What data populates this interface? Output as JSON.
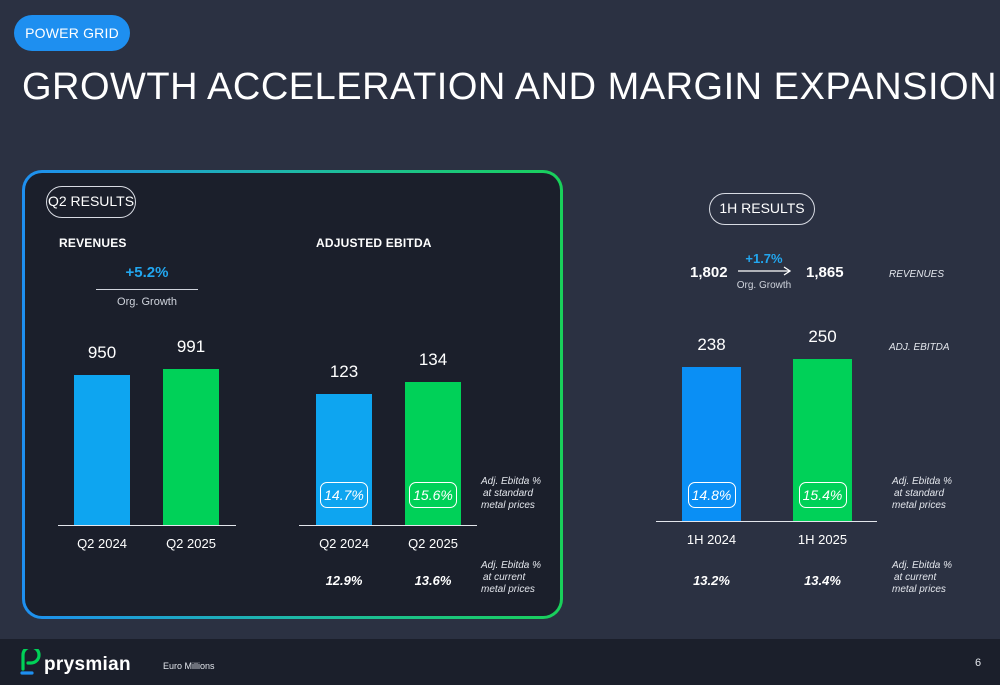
{
  "header": {
    "tag": "POWER GRID",
    "title": "GROWTH ACCELERATION AND MARGIN EXPANSION"
  },
  "q2": {
    "pill": "Q2 RESULTS",
    "revenues": {
      "heading": "REVENUES",
      "growth_value": "+5.2%",
      "growth_label": "Org. Growth"
    },
    "ebitda": {
      "heading": "ADJUSTED EBITDA"
    },
    "note_standard": [
      "Adj. Ebitda %",
      "at standard",
      "metal prices"
    ],
    "note_current": [
      "Adj. Ebitda %",
      "at current",
      "metal prices"
    ]
  },
  "h1": {
    "pill": "1H RESULTS",
    "rev_from": "1,802",
    "rev_to": "1,865",
    "growth_value": "+1.7%",
    "growth_label": "Org. Growth",
    "revenues_label": "REVENUES",
    "ebitda_label": "ADJ. EBITDA",
    "note_standard": [
      "Adj. Ebitda %",
      "at standard",
      "metal prices"
    ],
    "note_current": [
      "Adj. Ebitda %",
      "at current",
      "metal prices"
    ]
  },
  "footer": {
    "logo": "prysmian",
    "unit": "Euro Millions",
    "page": "6"
  },
  "colors": {
    "blue": "#0ea5f0",
    "blue_1h": "#0a8ff5",
    "green": "#00d158",
    "background": "#2b3142",
    "panel": "#1b1f2b",
    "accent_growth": "#22a7f0"
  },
  "chart_data": [
    {
      "type": "bar",
      "title": "REVENUES",
      "categories": [
        "Q2 2024",
        "Q2 2025"
      ],
      "values": [
        950,
        991
      ],
      "labels": [
        "950",
        "991"
      ]
    },
    {
      "type": "bar",
      "title": "ADJUSTED EBITDA",
      "categories": [
        "Q2 2024",
        "Q2 2025"
      ],
      "values": [
        123,
        134
      ],
      "labels": [
        "123",
        "134"
      ],
      "margin_standard": [
        "14.7%",
        "15.6%"
      ],
      "margin_current": [
        "12.9%",
        "13.6%"
      ]
    },
    {
      "type": "bar",
      "title": "ADJ. EBITDA",
      "categories": [
        "1H 2024",
        "1H 2025"
      ],
      "values": [
        238,
        250
      ],
      "labels": [
        "238",
        "250"
      ],
      "margin_standard": [
        "14.8%",
        "15.4%"
      ],
      "margin_current": [
        "13.2%",
        "13.4%"
      ]
    }
  ]
}
